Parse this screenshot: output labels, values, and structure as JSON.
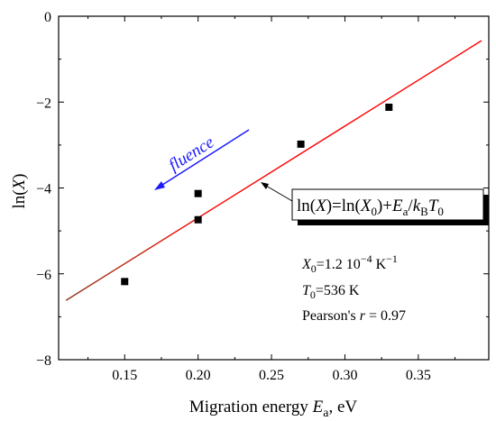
{
  "chart_data": {
    "type": "scatter",
    "x_axis": {
      "label_main": "Migration energy ",
      "label_var": "E",
      "label_sub": "a",
      "label_unit": ", eV",
      "lim": [
        0.105,
        0.398
      ],
      "ticks": [
        0.15,
        0.2,
        0.25,
        0.3,
        0.35
      ],
      "tick_labels": [
        "0.15",
        "0.20",
        "0.25",
        "0.30",
        "0.35"
      ]
    },
    "y_axis": {
      "label_prefix": "ln(",
      "label_var": "X",
      "label_suffix": ")",
      "lim": [
        -8,
        0
      ],
      "ticks": [
        0,
        -2,
        -4,
        -6,
        -8
      ],
      "tick_labels": [
        "0",
        "−2",
        "−4",
        "−6",
        "−8"
      ]
    },
    "grid": false,
    "series": [
      {
        "marker": "square",
        "color": "#000000",
        "points": [
          {
            "x": 0.15,
            "y": -6.18
          },
          {
            "x": 0.2,
            "y": -4.74
          },
          {
            "x": 0.2,
            "y": -4.13
          },
          {
            "x": 0.27,
            "y": -2.98
          },
          {
            "x": 0.33,
            "y": -2.12
          }
        ]
      }
    ],
    "fit_line": {
      "x": [
        0.11,
        0.393
      ],
      "y": [
        -6.62,
        -0.57
      ],
      "color_left": "#8b3a1a",
      "color_right": "#ff0000"
    },
    "annotations": {
      "fluence_label": "fluence",
      "fluence_arrow_color": "#1a1aff",
      "formula": {
        "a": "ln(",
        "b": "X",
        "c": ")=ln(",
        "d": "X",
        "e": "0",
        "f": ")+",
        "g": "E",
        "h": "a",
        "i": "/",
        "j": "k",
        "k": "B",
        "l": "T",
        "m": "0"
      },
      "param_x0": {
        "var": "X",
        "sub": "0",
        "text": "=1.2 10",
        "exp": "−4",
        "unit": " K",
        "unit_exp": "−1"
      },
      "param_t0": {
        "var": "T",
        "sub": "0",
        "text": "=536 K"
      },
      "param_r": {
        "prefix": "Pearson's ",
        "var": "r",
        "text": " = 0.97"
      }
    }
  }
}
